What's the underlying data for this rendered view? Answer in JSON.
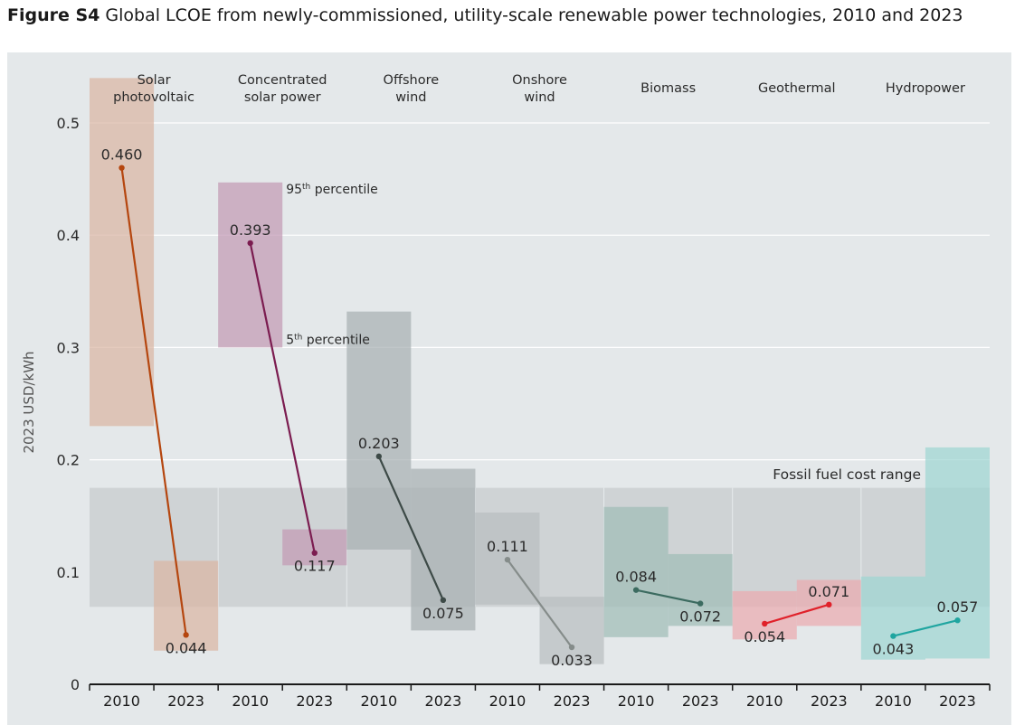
{
  "figure": {
    "label": "Figure S4",
    "title": "Global LCOE from newly-commissioned, utility-scale renewable power technologies, 2010 and 2023"
  },
  "chart_data": {
    "type": "range-bar-slope",
    "ylabel": "2023 USD/kWh",
    "ylim": [
      0,
      0.5
    ],
    "yticks": [
      "0",
      "0.1",
      "0.2",
      "0.3",
      "0.4",
      "0.5"
    ],
    "year_labels": [
      "2010",
      "2023"
    ],
    "fossil_range": {
      "label": "Fossil fuel cost range",
      "low": 0.069,
      "high": 0.175
    },
    "annotations": {
      "p95": "95th percentile",
      "p5": "5th percentile"
    },
    "technologies": [
      {
        "name": "Solar photovoltaic",
        "color": "#b5460f",
        "box_color": "#d9b5a3",
        "y2010": {
          "value": 0.46,
          "label": "0.460",
          "p5": 0.23,
          "p95": 0.54
        },
        "y2023": {
          "value": 0.044,
          "label": "0.044",
          "p5": 0.03,
          "p95": 0.11
        }
      },
      {
        "name": "Concentrated solar power",
        "color": "#7b1c50",
        "box_color": "#c29ab4",
        "y2010": {
          "value": 0.393,
          "label": "0.393",
          "p5": 0.3,
          "p95": 0.447
        },
        "y2023": {
          "value": 0.117,
          "label": "0.117",
          "p5": 0.106,
          "p95": 0.138
        }
      },
      {
        "name": "Offshore wind",
        "color": "#3d4a47",
        "box_color": "#a7b0b3",
        "y2010": {
          "value": 0.203,
          "label": "0.203",
          "p5": 0.12,
          "p95": 0.332
        },
        "y2023": {
          "value": 0.075,
          "label": "0.075",
          "p5": 0.048,
          "p95": 0.192
        }
      },
      {
        "name": "Onshore wind",
        "color": "#858c8a",
        "box_color": "#b8bec0",
        "y2010": {
          "value": 0.111,
          "label": "0.111",
          "p5": 0.071,
          "p95": 0.153
        },
        "y2023": {
          "value": 0.033,
          "label": "0.033",
          "p5": 0.018,
          "p95": 0.078
        }
      },
      {
        "name": "Biomass",
        "color": "#3c6b60",
        "box_color": "#9fbcb7",
        "y2010": {
          "value": 0.084,
          "label": "0.084",
          "p5": 0.042,
          "p95": 0.158
        },
        "y2023": {
          "value": 0.072,
          "label": "0.072",
          "p5": 0.052,
          "p95": 0.116
        }
      },
      {
        "name": "Geothermal",
        "color": "#e0212a",
        "box_color": "#eaaab0",
        "y2010": {
          "value": 0.054,
          "label": "0.054",
          "p5": 0.04,
          "p95": 0.083
        },
        "y2023": {
          "value": 0.071,
          "label": "0.071",
          "p5": 0.052,
          "p95": 0.093
        }
      },
      {
        "name": "Hydropower",
        "color": "#1fa5a0",
        "box_color": "#9ed6d3",
        "y2010": {
          "value": 0.043,
          "label": "0.043",
          "p5": 0.022,
          "p95": 0.096
        },
        "y2023": {
          "value": 0.057,
          "label": "0.057",
          "p5": 0.023,
          "p95": 0.211
        }
      }
    ]
  }
}
